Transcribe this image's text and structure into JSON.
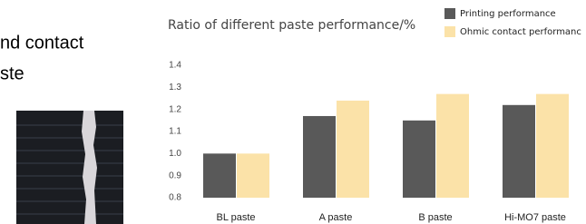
{
  "slide_text": [
    "nd contact",
    "ste"
  ],
  "chart_data": {
    "type": "bar",
    "title": "Ratio of different paste performance/%",
    "categories": [
      "BL paste",
      "A paste",
      "B paste",
      "Hi-MO7 paste"
    ],
    "series": [
      {
        "name": "Printing performance",
        "color": "#595959",
        "values": [
          1.0,
          1.17,
          1.15,
          1.22
        ]
      },
      {
        "name": "Ohmic contact performanc",
        "color": "#fbe2a8",
        "values": [
          1.0,
          1.24,
          1.27,
          1.27
        ]
      }
    ],
    "ylim": [
      0.8,
      1.4
    ],
    "yticks": [
      0.8,
      0.9,
      {
        "value": 1,
        "label": "1.0"
      },
      1.1,
      1.2,
      1.3,
      1.4
    ],
    "grid": false,
    "legend": "top-right"
  }
}
